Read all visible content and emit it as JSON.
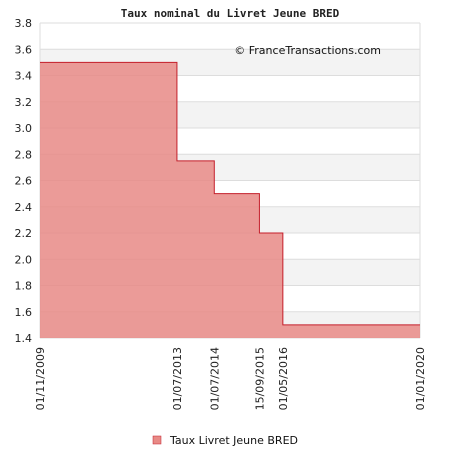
{
  "chart_data": {
    "type": "area",
    "title": "Taux nominal du Livret Jeune BRED",
    "credit": "© FranceTransactions.com",
    "xlabel": "",
    "ylabel": "",
    "ylim": [
      1.4,
      3.8
    ],
    "y_ticks": [
      1.4,
      1.6,
      1.8,
      2.0,
      2.2,
      2.4,
      2.6,
      2.8,
      3.0,
      3.2,
      3.4,
      3.6,
      3.8
    ],
    "x_ticks": [
      "01/11/2009",
      "01/07/2013",
      "01/07/2014",
      "15/09/2015",
      "01/05/2016",
      "01/01/2020"
    ],
    "x": [
      "01/11/2009",
      "01/07/2013",
      "01/07/2014",
      "15/09/2015",
      "01/05/2016",
      "01/01/2020"
    ],
    "series": [
      {
        "name": "Taux Livret Jeune BRED",
        "values": [
          3.5,
          2.75,
          2.5,
          2.2,
          1.5,
          1.5
        ],
        "color": "#e06666"
      }
    ],
    "step": true,
    "grid": true,
    "legend": "bottom-center",
    "colors": {
      "fill": "#e88a86",
      "stroke": "#c41e2a",
      "band": "#f3f3f3"
    }
  }
}
